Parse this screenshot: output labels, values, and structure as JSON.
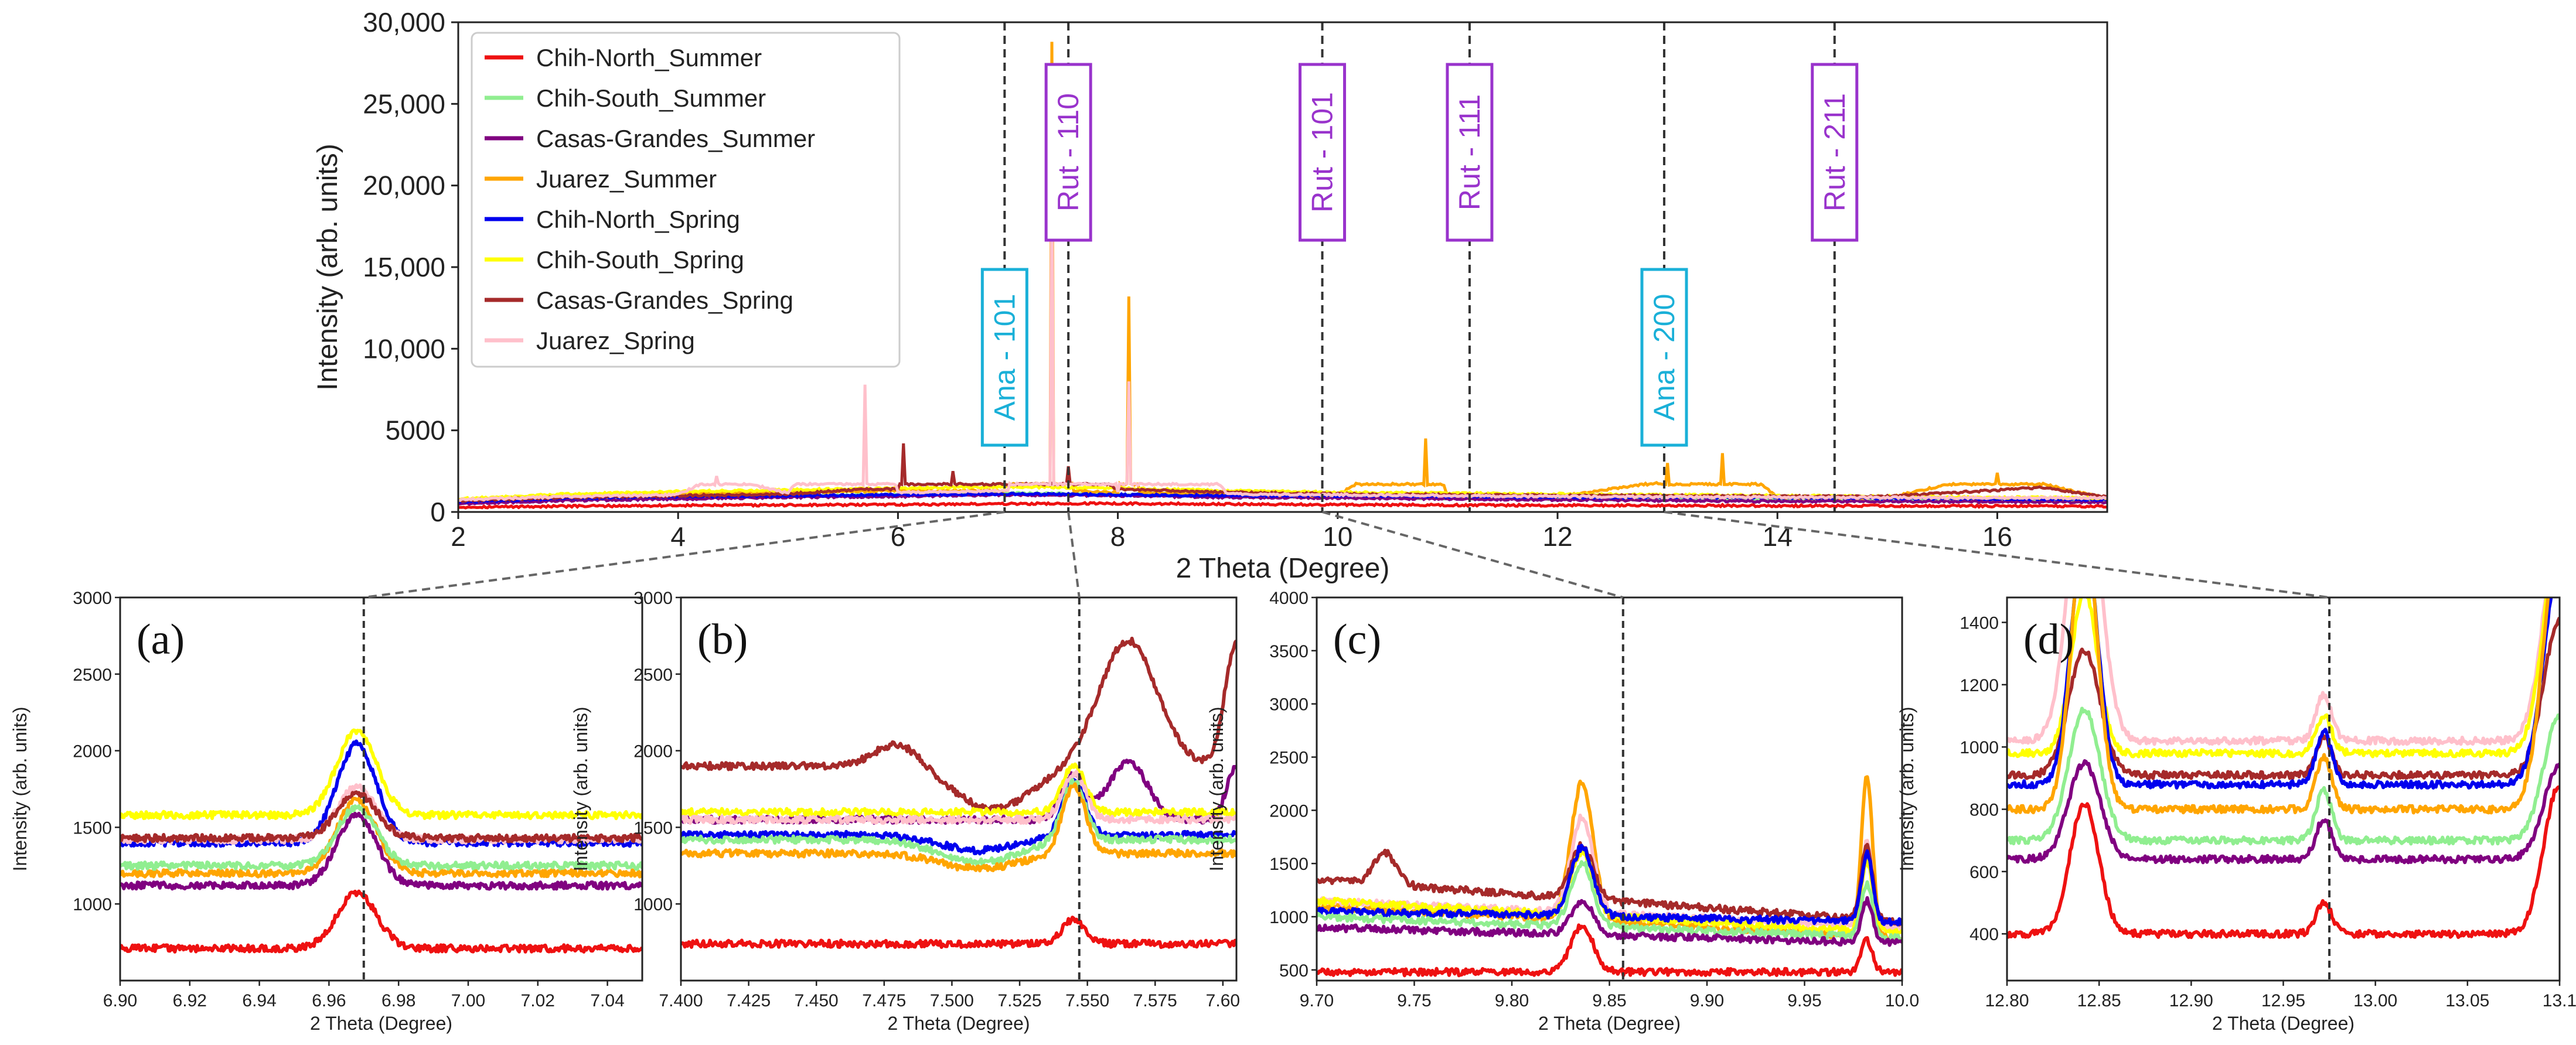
{
  "colors": {
    "Chih-North_Summer": "#ee1111",
    "Chih-South_Summer": "#90ee90",
    "Casas-Grandes_Summer": "#800080",
    "Juarez_Summer": "#ffa500",
    "Chih-North_Spring": "#0000ee",
    "Chih-South_Spring": "#ffff00",
    "Casas-Grandes_Spring": "#a52a2a",
    "Juarez_Spring": "#ffc0cb",
    "rutile_label": "#9933cc",
    "anatase_label": "#1ab0d8"
  },
  "legend": {
    "entries": [
      {
        "key": "Chih-North_Summer",
        "label": "Chih-North_Summer"
      },
      {
        "key": "Chih-South_Summer",
        "label": "Chih-South_Summer"
      },
      {
        "key": "Casas-Grandes_Summer",
        "label": "Casas-Grandes_Summer"
      },
      {
        "key": "Juarez_Summer",
        "label": "Juarez_Summer"
      },
      {
        "key": "Chih-North_Spring",
        "label": "Chih-North_Spring"
      },
      {
        "key": "Chih-South_Spring",
        "label": "Chih-South_Spring"
      },
      {
        "key": "Casas-Grandes_Spring",
        "label": "Casas-Grandes_Spring"
      },
      {
        "key": "Juarez_Spring",
        "label": "Juarez_Spring"
      }
    ]
  },
  "chart_data": [
    {
      "id": "main",
      "type": "line",
      "xlabel": "2 Theta (Degree)",
      "ylabel": "Intensity (arb. units)",
      "xlim": [
        2,
        17
      ],
      "ylim": [
        0,
        30000
      ],
      "xticks": [
        2,
        4,
        6,
        8,
        10,
        12,
        14,
        16
      ],
      "yticks": [
        0,
        5000,
        10000,
        15000,
        20000,
        25000,
        30000
      ],
      "ytick_labels": [
        "0",
        "5000",
        "10,000",
        "15,000",
        "20,000",
        "25,000",
        "30,000"
      ],
      "annotations": [
        {
          "label": "Ana - 101",
          "x": 6.97,
          "phase": "anatase"
        },
        {
          "label": "Rut - 110",
          "x": 7.55,
          "phase": "rutile"
        },
        {
          "label": "Rut - 101",
          "x": 9.86,
          "phase": "rutile"
        },
        {
          "label": "Rut - 111",
          "x": 11.2,
          "phase": "rutile"
        },
        {
          "label": "Ana - 200",
          "x": 12.97,
          "phase": "anatase"
        },
        {
          "label": "Rut - 211",
          "x": 14.52,
          "phase": "rutile"
        }
      ],
      "series": [
        {
          "key": "Chih-North_Summer",
          "x": [
            2,
            3,
            4,
            5,
            6,
            7,
            8,
            9,
            10,
            11,
            12,
            13,
            14,
            15,
            16,
            17
          ],
          "y": [
            300,
            350,
            400,
            420,
            450,
            500,
            520,
            480,
            450,
            420,
            400,
            400,
            380,
            370,
            360,
            350
          ]
        },
        {
          "key": "Chih-South_Summer",
          "x": [
            2,
            3,
            4,
            5,
            6,
            7,
            8,
            9,
            10,
            11,
            12,
            13,
            14,
            15,
            16,
            17
          ],
          "y": [
            600,
            800,
            900,
            1000,
            1050,
            1150,
            1100,
            1000,
            900,
            850,
            800,
            780,
            750,
            730,
            700,
            650
          ]
        },
        {
          "key": "Casas-Grandes_Summer",
          "x": [
            2,
            3,
            4,
            5,
            6,
            7,
            8,
            9,
            10,
            11,
            12,
            13,
            14,
            15,
            16,
            17
          ],
          "y": [
            500,
            700,
            800,
            900,
            950,
            1050,
            1000,
            900,
            850,
            800,
            750,
            700,
            650,
            650,
            620,
            600
          ]
        },
        {
          "key": "Juarez_Summer",
          "x": [
            2,
            3,
            4,
            5,
            6,
            7,
            7.4,
            7.6,
            8,
            8.1,
            8.2,
            9,
            10,
            10.8,
            11,
            12,
            12.9,
            13,
            13.5,
            14,
            15,
            16,
            17
          ],
          "y": [
            700,
            1000,
            1100,
            1200,
            1300,
            1300,
            28800,
            1300,
            1200,
            13200,
            1200,
            1100,
            1000,
            4500,
            1000,
            950,
            1800,
            3000,
            3600,
            900,
            850,
            2400,
            800
          ]
        },
        {
          "key": "Chih-North_Spring",
          "x": [
            2,
            3,
            4,
            5,
            6,
            7,
            8,
            9,
            10,
            11,
            12,
            13,
            14,
            15,
            16,
            17
          ],
          "y": [
            600,
            850,
            950,
            1000,
            1050,
            1100,
            1050,
            1000,
            1000,
            950,
            900,
            900,
            880,
            850,
            800,
            750
          ]
        },
        {
          "key": "Chih-South_Spring",
          "x": [
            2,
            3,
            4,
            5,
            6,
            7,
            8,
            9,
            10,
            11,
            12,
            13,
            14,
            15,
            16,
            17
          ],
          "y": [
            800,
            1100,
            1250,
            1350,
            1450,
            1550,
            1450,
            1300,
            1200,
            1150,
            1100,
            1050,
            1000,
            950,
            900,
            850
          ]
        },
        {
          "key": "Casas-Grandes_Spring",
          "x": [
            2,
            3,
            4,
            5,
            5.7,
            6,
            6.05,
            6.5,
            7,
            7.55,
            8,
            9,
            10,
            11,
            12,
            13,
            14,
            15,
            16.4,
            17
          ],
          "y": [
            700,
            900,
            1000,
            1100,
            1400,
            1400,
            4200,
            2500,
            1700,
            2800,
            1400,
            1200,
            1100,
            1050,
            1000,
            1000,
            950,
            950,
            1500,
            900
          ]
        },
        {
          "key": "Juarez_Spring",
          "x": [
            2,
            3,
            4,
            4.35,
            5,
            5.7,
            6,
            7,
            7.4,
            8,
            8.1,
            9,
            10,
            11,
            12,
            13,
            14,
            15,
            16,
            17
          ],
          "y": [
            750,
            950,
            1050,
            2200,
            1150,
            7800,
            1200,
            1300,
            22000,
            1250,
            8000,
            1100,
            1050,
            1000,
            950,
            920,
            900,
            880,
            860,
            850
          ]
        }
      ]
    },
    {
      "id": "a",
      "panel_label": "(a)",
      "type": "line",
      "xlabel": "2 Theta (Degree)",
      "ylabel": "Intensity (arb. units)",
      "xlim": [
        6.9,
        7.05
      ],
      "ylim": [
        500,
        3000
      ],
      "xticks": [
        6.9,
        6.92,
        6.94,
        6.96,
        6.98,
        7.0,
        7.02,
        7.04
      ],
      "xtick_labels": [
        "6.90",
        "6.92",
        "6.94",
        "6.96",
        "6.98",
        "7.00",
        "7.02",
        "7.04"
      ],
      "yticks": [
        1000,
        1500,
        2000,
        2500,
        3000
      ],
      "marker_x": 6.97,
      "peak": {
        "center": 6.968,
        "width": 0.008
      },
      "series": [
        {
          "key": "Chih-South_Spring",
          "base": 1580,
          "peak": 550,
          "slope": 0
        },
        {
          "key": "Chih-North_Spring",
          "base": 1400,
          "peak": 640,
          "slope": 0
        },
        {
          "key": "Juarez_Spring",
          "base": 1420,
          "peak": 340,
          "slope": 0
        },
        {
          "key": "Casas-Grandes_Spring",
          "base": 1430,
          "peak": 290,
          "slope": 0
        },
        {
          "key": "Juarez_Summer",
          "base": 1200,
          "peak": 480,
          "slope": 0
        },
        {
          "key": "Chih-South_Summer",
          "base": 1250,
          "peak": 380,
          "slope": 0
        },
        {
          "key": "Casas-Grandes_Summer",
          "base": 1120,
          "peak": 460,
          "slope": 0
        },
        {
          "key": "Chih-North_Summer",
          "base": 710,
          "peak": 360,
          "slope": 0
        }
      ]
    },
    {
      "id": "b",
      "panel_label": "(b)",
      "type": "line",
      "xlabel": "2 Theta (Degree)",
      "ylabel": "Intensity (arb. units)",
      "xlim": [
        7.4,
        7.605
      ],
      "ylim": [
        500,
        3000
      ],
      "xticks": [
        7.4,
        7.425,
        7.45,
        7.475,
        7.5,
        7.525,
        7.55,
        7.575,
        7.6
      ],
      "xtick_labels": [
        "7.400",
        "7.425",
        "7.450",
        "7.475",
        "7.500",
        "7.525",
        "7.550",
        "7.575",
        "7.60"
      ],
      "yticks": [
        1000,
        1500,
        2000,
        2500,
        3000
      ],
      "marker_x": 7.547,
      "peak": {
        "center": 7.545,
        "width": 0.006
      },
      "series": [
        {
          "key": "Casas-Grandes_Spring",
          "base": 1900,
          "peak": 0,
          "slope": 0,
          "bumps": [
            [
              7.48,
              150,
              0.012
            ],
            [
              7.565,
              820,
              0.015
            ],
            [
              7.605,
              800,
              0.006
            ]
          ],
          "dips": [
            [
              7.515,
              280,
              0.02
            ]
          ]
        },
        {
          "key": "Casas-Grandes_Summer",
          "base": 1550,
          "peak": 300,
          "slope": 0,
          "bumps": [
            [
              7.565,
              380,
              0.01
            ],
            [
              7.605,
              350,
              0.005
            ]
          ],
          "dips": []
        },
        {
          "key": "Chih-South_Spring",
          "base": 1600,
          "peak": 300,
          "slope": 0,
          "bumps": [],
          "dips": []
        },
        {
          "key": "Juarez_Spring",
          "base": 1550,
          "peak": 300,
          "slope": 0,
          "bumps": [],
          "dips": []
        },
        {
          "key": "Chih-North_Spring",
          "base": 1450,
          "peak": 350,
          "slope": 0,
          "bumps": [],
          "dips": [
            [
              7.51,
              100,
              0.02
            ]
          ]
        },
        {
          "key": "Chih-South_Summer",
          "base": 1420,
          "peak": 380,
          "slope": 0,
          "bumps": [],
          "dips": [
            [
              7.51,
              150,
              0.02
            ]
          ]
        },
        {
          "key": "Juarez_Summer",
          "base": 1330,
          "peak": 450,
          "slope": 0,
          "bumps": [],
          "dips": [
            [
              7.51,
              100,
              0.02
            ]
          ]
        },
        {
          "key": "Chih-North_Summer",
          "base": 740,
          "peak": 160,
          "slope": 0,
          "bumps": [],
          "dips": []
        }
      ]
    },
    {
      "id": "c",
      "panel_label": "(c)",
      "type": "line",
      "xlabel": "2 Theta (Degree)",
      "ylabel": "Intensity (arb. units)",
      "xlim": [
        9.7,
        10.0
      ],
      "ylim": [
        400,
        4000
      ],
      "xticks": [
        9.7,
        9.75,
        9.8,
        9.85,
        9.9,
        9.95,
        10.0
      ],
      "xtick_labels": [
        "9.70",
        "9.75",
        "9.80",
        "9.85",
        "9.90",
        "9.95",
        "10.0"
      ],
      "yticks": [
        500,
        1000,
        1500,
        2000,
        2500,
        3000,
        3500,
        4000
      ],
      "marker_x": 9.857,
      "peak": {
        "center": 9.836,
        "width": 0.008
      },
      "series": [
        {
          "key": "Juarez_Summer",
          "base": 1100,
          "peak": 1300,
          "slope": -600,
          "bumps": [
            [
              9.982,
              1500,
              0.004
            ]
          ],
          "dips": []
        },
        {
          "key": "Juarez_Spring",
          "base": 1150,
          "peak": 900,
          "slope": -500,
          "bumps": [
            [
              9.982,
              800,
              0.004
            ]
          ],
          "dips": []
        },
        {
          "key": "Casas-Grandes_Spring",
          "base": 1350,
          "peak": 500,
          "slope": -800,
          "bumps": [
            [
              9.735,
              300,
              0.008
            ],
            [
              9.982,
              700,
              0.004
            ]
          ],
          "dips": []
        },
        {
          "key": "Chih-South_Spring",
          "base": 1150,
          "peak": 600,
          "slope": -600,
          "bumps": [
            [
              9.982,
              650,
              0.004
            ]
          ],
          "dips": []
        },
        {
          "key": "Chih-North_Spring",
          "base": 1050,
          "peak": 650,
          "slope": -200,
          "bumps": [
            [
              9.982,
              650,
              0.004
            ]
          ],
          "dips": []
        },
        {
          "key": "Chih-South_Summer",
          "base": 1000,
          "peak": 600,
          "slope": -400,
          "bumps": [
            [
              9.982,
              500,
              0.004
            ]
          ],
          "dips": []
        },
        {
          "key": "Casas-Grandes_Summer",
          "base": 900,
          "peak": 320,
          "slope": -300,
          "bumps": [
            [
              9.982,
              400,
              0.004
            ]
          ],
          "dips": []
        },
        {
          "key": "Chih-North_Summer",
          "base": 480,
          "peak": 440,
          "slope": 0,
          "bumps": [
            [
              9.982,
              300,
              0.004
            ]
          ],
          "dips": []
        }
      ]
    },
    {
      "id": "d",
      "panel_label": "(d)",
      "type": "line",
      "xlabel": "2 Theta (Degree)",
      "ylabel": "Intensity (arb. units)",
      "xlim": [
        12.8,
        13.1
      ],
      "ylim": [
        250,
        1480
      ],
      "xticks": [
        12.8,
        12.85,
        12.9,
        12.95,
        13.0,
        13.05,
        13.1
      ],
      "xtick_labels": [
        "12.80",
        "12.85",
        "12.90",
        "12.95",
        "13.00",
        "13.05",
        "13.1"
      ],
      "yticks": [
        400,
        600,
        800,
        1000,
        1200,
        1400
      ],
      "marker_x": 12.975,
      "peak": {
        "center": 12.972,
        "width": 0.006
      },
      "series": [
        {
          "key": "Juarez_Spring",
          "base": 1020,
          "peak": 150,
          "slope": 0,
          "bumps": [
            [
              12.842,
              900,
              0.012
            ],
            [
              13.1,
              700,
              0.012
            ]
          ],
          "dips": []
        },
        {
          "key": "Chih-South_Spring",
          "base": 980,
          "peak": 120,
          "slope": 0,
          "bumps": [
            [
              12.842,
              520,
              0.01
            ],
            [
              13.1,
              700,
              0.012
            ]
          ],
          "dips": []
        },
        {
          "key": "Casas-Grandes_Spring",
          "base": 910,
          "peak": 120,
          "slope": 0,
          "bumps": [
            [
              12.842,
              400,
              0.012
            ],
            [
              13.1,
              500,
              0.012
            ]
          ],
          "dips": []
        },
        {
          "key": "Chih-North_Spring",
          "base": 880,
          "peak": 170,
          "slope": 0,
          "bumps": [
            [
              12.842,
              800,
              0.01
            ],
            [
              13.1,
              700,
              0.012
            ]
          ],
          "dips": []
        },
        {
          "key": "Juarez_Summer",
          "base": 800,
          "peak": 170,
          "slope": 0,
          "bumps": [
            [
              12.842,
              900,
              0.01
            ],
            [
              13.1,
              900,
              0.012
            ]
          ],
          "dips": []
        },
        {
          "key": "Chih-South_Summer",
          "base": 700,
          "peak": 160,
          "slope": 0,
          "bumps": [
            [
              12.842,
              420,
              0.012
            ],
            [
              13.1,
              400,
              0.012
            ]
          ],
          "dips": []
        },
        {
          "key": "Casas-Grandes_Summer",
          "base": 640,
          "peak": 130,
          "slope": 0,
          "bumps": [
            [
              12.842,
              310,
              0.012
            ],
            [
              13.1,
              300,
              0.012
            ]
          ],
          "dips": []
        },
        {
          "key": "Chih-North_Summer",
          "base": 400,
          "peak": 100,
          "slope": 0,
          "bumps": [
            [
              12.842,
              420,
              0.011
            ],
            [
              13.1,
              480,
              0.012
            ]
          ],
          "dips": []
        }
      ]
    }
  ]
}
